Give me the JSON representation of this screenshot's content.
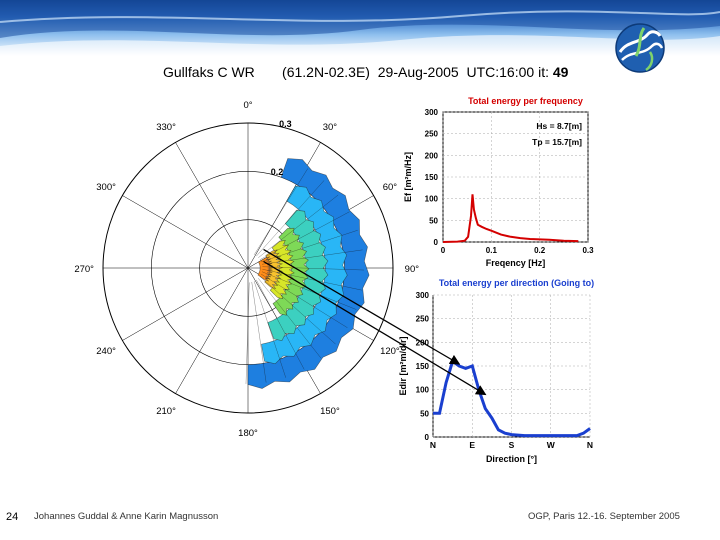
{
  "slide": {
    "page_number": "24",
    "author": "Johannes Guddal & Anne Karin Magnusson",
    "event": "OGP, Paris 12.-16. September 2005",
    "title": {
      "station": "Gullfaks C WR",
      "position": "(61.2N-02.3E)",
      "date": "29-Aug-2005",
      "utc": "UTC:16:00",
      "it_label": "it:",
      "it_value": "49"
    },
    "colors": {
      "banner": "#2a6cc4",
      "energy_curve": "#d40000",
      "dir_curve": "#1a3fcf",
      "panel_title": "#d40000",
      "dir_title": "#1a3fcf"
    }
  },
  "chart_data": [
    {
      "type": "polar",
      "title": "Directional wave spectrum",
      "angle_labels": [
        "0°",
        "30°",
        "60°",
        "90°",
        "120°",
        "150°",
        "180°",
        "210°",
        "240°",
        "270°",
        "300°",
        "330°"
      ],
      "radial_ticks": [
        "0.3",
        "0.2"
      ],
      "rmax": 0.3,
      "spectrum_colors": [
        "#1e7fe0",
        "#29b6f6",
        "#3cd0c0",
        "#7ed957",
        "#d7e629",
        "#f7c22e",
        "#ff8c1a"
      ],
      "spectrum_bands": [
        {
          "a0": 20,
          "a1": 180,
          "r0": 0.2,
          "r1": 0.245
        },
        {
          "a0": 30,
          "a1": 170,
          "r0": 0.16,
          "r1": 0.2
        },
        {
          "a0": 40,
          "a1": 160,
          "r0": 0.12,
          "r1": 0.16
        },
        {
          "a0": 45,
          "a1": 145,
          "r0": 0.09,
          "r1": 0.12
        },
        {
          "a0": 50,
          "a1": 135,
          "r0": 0.065,
          "r1": 0.09
        },
        {
          "a0": 55,
          "a1": 130,
          "r0": 0.045,
          "r1": 0.065
        },
        {
          "a0": 60,
          "a1": 125,
          "r0": 0.025,
          "r1": 0.045
        }
      ],
      "peak_direction_deg": 80,
      "peak_frequency_hz": 0.06
    },
    {
      "type": "line",
      "title": "Total energy per frequency",
      "xlabel": "Freqency [Hz]",
      "ylabel": "Ef [m²m/Hz]",
      "xlim": [
        0,
        0.3
      ],
      "ylim": [
        0,
        300
      ],
      "xticks": [
        "0",
        "0.1",
        "0.2",
        "0.3"
      ],
      "yticks": [
        "0",
        "50",
        "100",
        "150",
        "200",
        "250",
        "300"
      ],
      "annotations": [
        "Hs = 8.7[m]",
        "Tp = 15.7[m]"
      ],
      "series": [
        {
          "name": "Ef",
          "x": [
            0.0,
            0.03,
            0.045,
            0.052,
            0.058,
            0.061,
            0.064,
            0.068,
            0.072,
            0.08,
            0.09,
            0.1,
            0.12,
            0.14,
            0.16,
            0.18,
            0.2,
            0.22,
            0.25,
            0.28
          ],
          "y": [
            0,
            1,
            3,
            12,
            60,
            110,
            75,
            55,
            40,
            35,
            30,
            26,
            17,
            12,
            9,
            7,
            6,
            5,
            3,
            2
          ]
        }
      ]
    },
    {
      "type": "line",
      "title": "Total energy per direction (Going to)",
      "xlabel": "Direction [°]",
      "ylabel": "Edir [m²m/dir]",
      "xlim": [
        0,
        360
      ],
      "ylim": [
        0,
        300
      ],
      "xticks": [
        "N",
        "E",
        "S",
        "W",
        "N"
      ],
      "yticks": [
        "0",
        "50",
        "100",
        "150",
        "200",
        "250",
        "300"
      ],
      "series": [
        {
          "name": "Edir",
          "x": [
            0,
            15,
            30,
            45,
            60,
            75,
            90,
            105,
            120,
            135,
            150,
            165,
            180,
            195,
            210,
            225,
            240,
            255,
            270,
            285,
            300,
            315,
            330,
            345,
            360
          ],
          "y": [
            50,
            50,
            115,
            160,
            150,
            145,
            150,
            100,
            60,
            40,
            15,
            8,
            5,
            4,
            3,
            3,
            3,
            3,
            3,
            3,
            3,
            3,
            3,
            8,
            18
          ]
        }
      ]
    }
  ]
}
